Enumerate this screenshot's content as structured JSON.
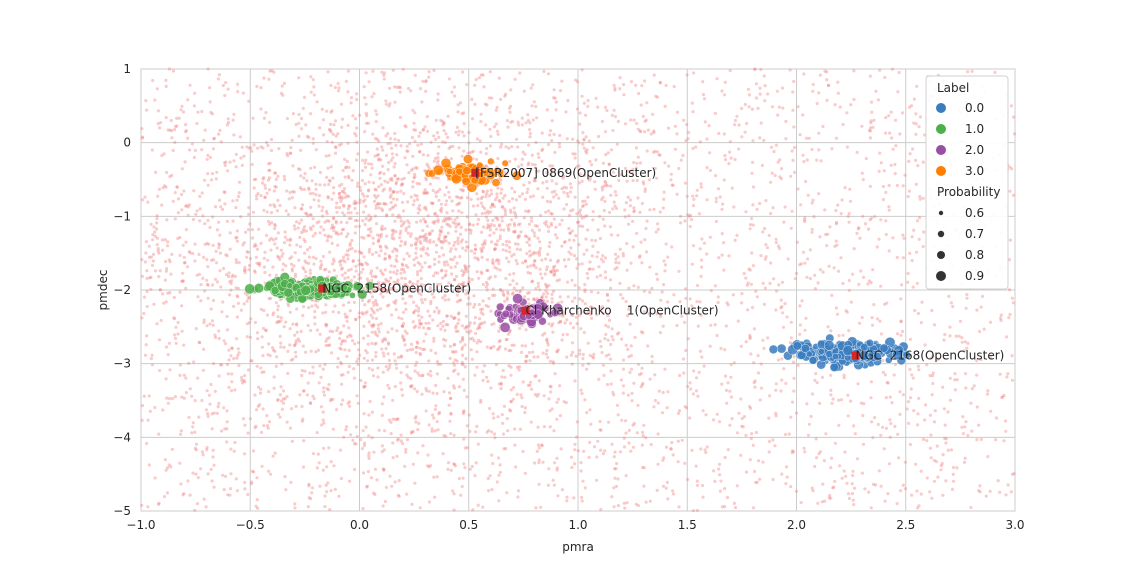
{
  "chart_data": {
    "type": "scatter",
    "xlabel": "pmra",
    "ylabel": "pmdec",
    "xlim": [
      -1.0,
      3.0
    ],
    "ylim": [
      -5,
      1
    ],
    "x_ticks": [
      "−1.0",
      "−0.5",
      "0.0",
      "0.5",
      "1.0",
      "1.5",
      "2.0",
      "2.5",
      "3.0"
    ],
    "x_tick_values": [
      -1.0,
      -0.5,
      0.0,
      0.5,
      1.0,
      1.5,
      2.0,
      2.5,
      3.0
    ],
    "y_ticks": [
      "1",
      "0",
      "−1",
      "−2",
      "−3",
      "−4",
      "−5"
    ],
    "y_tick_values": [
      1,
      0,
      -1,
      -2,
      -3,
      -4,
      -5
    ],
    "grid": true,
    "background": {
      "color": "#f08080",
      "n_points": 5000,
      "description_note": "faint background field stars"
    },
    "clusters": [
      {
        "label": "0.0",
        "color": "#3a7dbf",
        "center": [
          2.22,
          -2.85
        ],
        "spread": [
          0.12,
          0.07
        ],
        "n": 260
      },
      {
        "label": "1.0",
        "color": "#4daf4a",
        "center": [
          -0.22,
          -1.98
        ],
        "spread": [
          0.09,
          0.05
        ],
        "n": 320
      },
      {
        "label": "2.0",
        "color": "#984ea3",
        "center": [
          0.77,
          -2.32
        ],
        "spread": [
          0.08,
          0.08
        ],
        "n": 60
      },
      {
        "label": "3.0",
        "color": "#ff7f00",
        "center": [
          0.5,
          -0.4
        ],
        "spread": [
          0.08,
          0.07
        ],
        "n": 80
      }
    ],
    "annotations": [
      {
        "text": "[FSR2007] 0869(OpenCluster)",
        "x": 0.53,
        "y": -0.41
      },
      {
        "text": "NGC  2158(OpenCluster)",
        "x": -0.17,
        "y": -1.98
      },
      {
        "text": "Cl Kharchenko    1(OpenCluster)",
        "x": 0.76,
        "y": -2.28
      },
      {
        "text": "NGC  2168(OpenCluster)",
        "x": 2.27,
        "y": -2.89
      }
    ],
    "marker_color": "#d62728",
    "legend": {
      "position": "upper-right",
      "hue_title": "Label",
      "hue_entries": [
        {
          "label": "0.0",
          "color": "#3a7dbf"
        },
        {
          "label": "1.0",
          "color": "#4daf4a"
        },
        {
          "label": "2.0",
          "color": "#984ea3"
        },
        {
          "label": "3.0",
          "color": "#ff7f00"
        }
      ],
      "size_title": "Probability",
      "size_entries": [
        "0.6",
        "0.7",
        "0.8",
        "0.9"
      ]
    }
  }
}
